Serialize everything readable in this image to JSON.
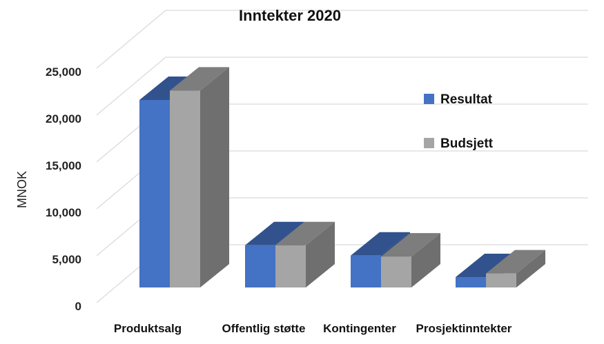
{
  "chart_data": {
    "type": "bar",
    "title": "Inntekter 2020",
    "xlabel": "",
    "ylabel": "MNOK",
    "categories": [
      "Produktsalg",
      "Offentlig støtte",
      "Kontingenter",
      "Prosjektinntekter"
    ],
    "series": [
      {
        "name": "Resultat",
        "values": [
          20000,
          4500,
          3400,
          1100
        ],
        "color": "#4472C4"
      },
      {
        "name": "Budsjett",
        "values": [
          21000,
          4500,
          3300,
          1500
        ],
        "color": "#A5A5A5"
      }
    ],
    "ylim": [
      0,
      25000
    ],
    "yticks": [
      "0",
      "5,000",
      "10,000",
      "15,000",
      "20,000",
      "25,000"
    ],
    "grid": true,
    "legend": "right",
    "style": "3d-column"
  }
}
